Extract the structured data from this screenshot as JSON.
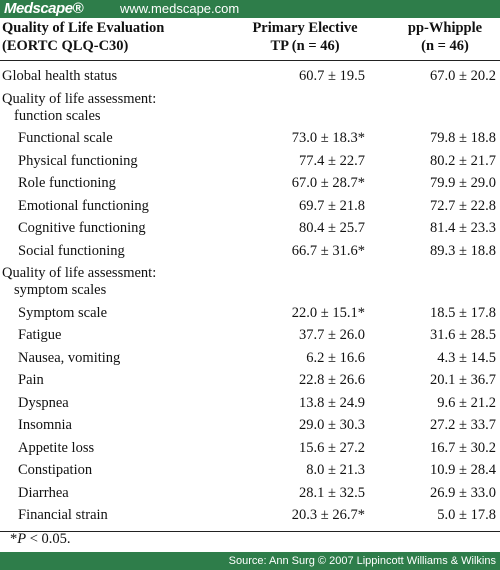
{
  "header": {
    "logo": "Medscape®",
    "url": "www.medscape.com"
  },
  "table": {
    "columns": [
      [
        "Quality of Life Evaluation",
        "(EORTC QLQ-C30)"
      ],
      [
        "Primary Elective",
        "TP (n = 46)"
      ],
      [
        "pp-Whipple",
        "(n = 46)"
      ]
    ],
    "rows": [
      {
        "label": [
          "Global health status"
        ],
        "values": [
          "60.7 ± 19.5",
          "67.0 ± 20.2"
        ]
      },
      {
        "label": [
          "Quality of life assessment:",
          "function scales"
        ],
        "children": [
          {
            "label": [
              "Functional scale"
            ],
            "values": [
              "73.0 ± 18.3*",
              "79.8 ± 18.8"
            ]
          },
          {
            "label": [
              "Physical functioning"
            ],
            "values": [
              "77.4 ± 22.7",
              "80.2 ± 21.7"
            ]
          },
          {
            "label": [
              "Role functioning"
            ],
            "values": [
              "67.0 ± 28.7*",
              "79.9 ± 29.0"
            ]
          },
          {
            "label": [
              "Emotional functioning"
            ],
            "values": [
              "69.7 ± 21.8",
              "72.7 ± 22.8"
            ]
          },
          {
            "label": [
              "Cognitive functioning"
            ],
            "values": [
              "80.4 ± 25.7",
              "81.4 ± 23.3"
            ]
          },
          {
            "label": [
              "Social functioning"
            ],
            "values": [
              "66.7 ± 31.6*",
              "89.3 ± 18.8"
            ]
          }
        ]
      },
      {
        "label": [
          "Quality of life assessment:",
          "symptom scales"
        ],
        "children": [
          {
            "label": [
              "Symptom scale"
            ],
            "values": [
              "22.0 ± 15.1*",
              "18.5 ± 17.8"
            ]
          },
          {
            "label": [
              "Fatigue"
            ],
            "values": [
              "37.7 ± 26.0",
              "31.6 ± 28.5"
            ]
          },
          {
            "label": [
              "Nausea, vomiting"
            ],
            "values": [
              "6.2 ± 16.6",
              "4.3 ± 14.5"
            ]
          },
          {
            "label": [
              "Pain"
            ],
            "values": [
              "22.8 ± 26.6",
              "20.1 ± 36.7"
            ]
          },
          {
            "label": [
              "Dyspnea"
            ],
            "values": [
              "13.8 ± 24.9",
              "9.6 ± 21.2"
            ]
          },
          {
            "label": [
              "Insomnia"
            ],
            "values": [
              "29.0 ± 30.3",
              "27.2 ± 33.7"
            ]
          },
          {
            "label": [
              "Appetite loss"
            ],
            "values": [
              "15.6 ± 27.2",
              "16.7 ± 30.2"
            ]
          },
          {
            "label": [
              "Constipation"
            ],
            "values": [
              "8.0 ± 21.3",
              "10.9 ± 28.4"
            ]
          },
          {
            "label": [
              "Diarrhea"
            ],
            "values": [
              "28.1 ± 32.5",
              "26.9 ± 33.0"
            ]
          },
          {
            "label": [
              "Financial strain"
            ],
            "values": [
              "20.3 ± 26.7*",
              "5.0 ± 17.8"
            ]
          }
        ]
      }
    ],
    "footnote": {
      "mark": "*",
      "variable": "P",
      "text": " < 0.05."
    }
  },
  "footer": {
    "source": "Source: Ann Surg © 2007 Lippincott Williams & Wilkins"
  }
}
